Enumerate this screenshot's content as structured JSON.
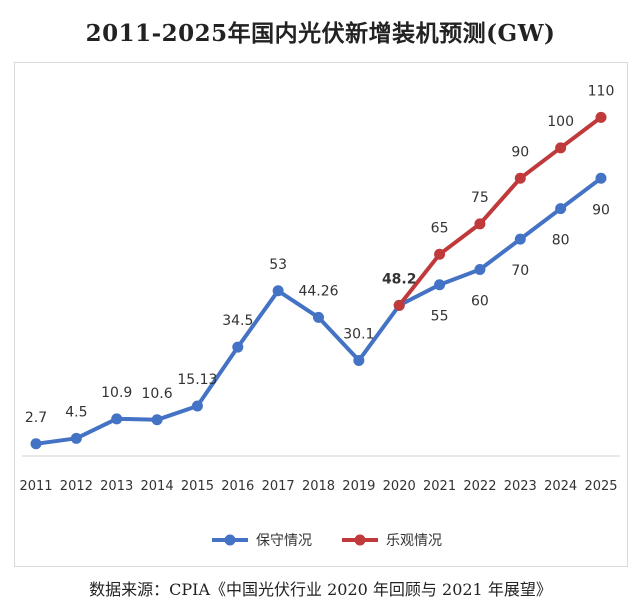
{
  "chart_data": {
    "type": "line",
    "title": "2011-2025年国内光伏新增装机预测(GW)",
    "xlabel": "",
    "ylabel": "",
    "ylim": [
      0,
      120
    ],
    "x": [
      "2011",
      "2012",
      "2013",
      "2014",
      "2015",
      "2016",
      "2017",
      "2018",
      "2019",
      "2020",
      "2021",
      "2022",
      "2023",
      "2024",
      "2025"
    ],
    "series": [
      {
        "name": "保守情况",
        "color": "#4472C4",
        "values": [
          2.7,
          4.5,
          10.9,
          10.6,
          15.13,
          34.5,
          53,
          44.26,
          30.1,
          48.2,
          55,
          60,
          70,
          80,
          90
        ],
        "labels": [
          "2.7",
          "4.5",
          "10.9",
          "10.6",
          "15.13",
          "34.5",
          "53",
          "44.26",
          "30.1",
          "48.2",
          "55",
          "60",
          "70",
          "80",
          "90"
        ]
      },
      {
        "name": "乐观情况",
        "color": "#C0393B",
        "values": [
          null,
          null,
          null,
          null,
          null,
          null,
          null,
          null,
          null,
          48.2,
          65,
          75,
          90,
          100,
          110
        ],
        "labels": [
          "",
          "",
          "",
          "",
          "",
          "",
          "",
          "",
          "",
          "",
          "65",
          "75",
          "90",
          "100",
          "110"
        ]
      }
    ],
    "grid": false,
    "legend_position": "bottom"
  },
  "source": "数据来源：CPIA《中国光伏行业 2020 年回顾与 2021 年展望》"
}
